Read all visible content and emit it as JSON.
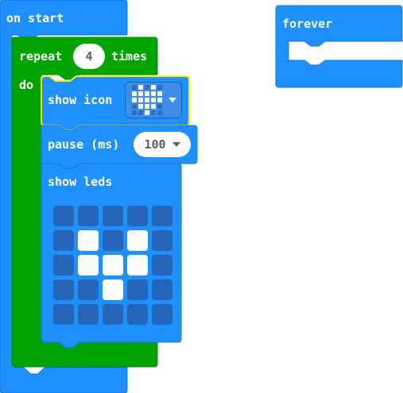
{
  "blocks": {
    "on_start": {
      "label": "on start"
    },
    "repeat": {
      "label": "repeat",
      "count": "4",
      "suffix": "times",
      "do_label": "do"
    },
    "show_icon": {
      "label": "show icon",
      "icon_name": "heart-icon",
      "icon_pattern": [
        [
          0,
          1,
          0,
          1,
          0
        ],
        [
          1,
          1,
          1,
          1,
          1
        ],
        [
          1,
          1,
          1,
          1,
          1
        ],
        [
          0,
          1,
          1,
          1,
          0
        ],
        [
          0,
          0,
          1,
          0,
          0
        ]
      ]
    },
    "pause": {
      "label": "pause (ms)",
      "value": "100"
    },
    "show_leds": {
      "label": "show leds",
      "leds": [
        [
          0,
          0,
          0,
          0,
          0
        ],
        [
          0,
          1,
          0,
          1,
          0
        ],
        [
          0,
          1,
          1,
          1,
          0
        ],
        [
          0,
          0,
          1,
          0,
          0
        ],
        [
          0,
          0,
          0,
          0,
          0
        ]
      ]
    },
    "forever": {
      "label": "forever"
    }
  },
  "colors": {
    "basic_blue": "#1e90ff",
    "loops_green": "#00a400",
    "selected_outline": "#fff200",
    "led_off": "#2565b8",
    "led_on": "#ffffff"
  }
}
